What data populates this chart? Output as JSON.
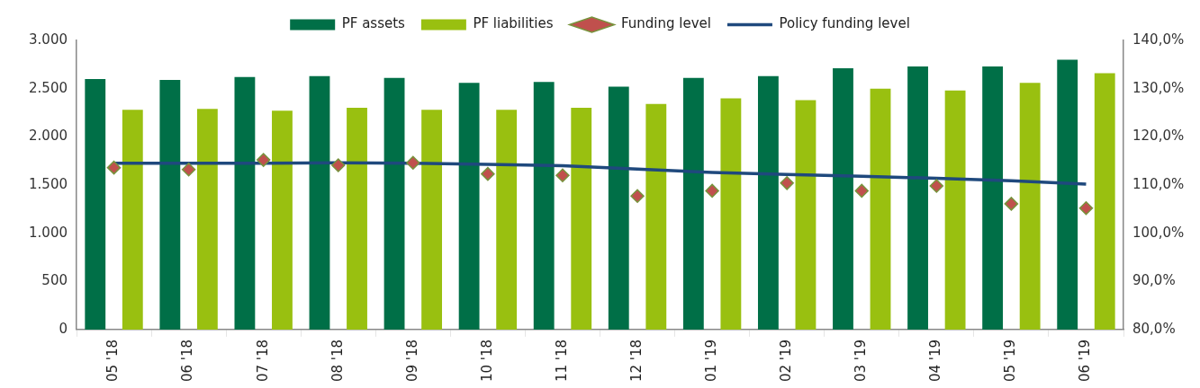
{
  "chart_data": {
    "type": "bar",
    "categories": [
      "05 '18",
      "06 '18",
      "07 '18",
      "08 '18",
      "09 '18",
      "10 '18",
      "11 '18",
      "12 '18",
      "01 '19",
      "02 '19",
      "03 '19",
      "04 '19",
      "05 '19",
      "06 '19"
    ],
    "series": [
      {
        "name": "PF assets",
        "color": "#006f47",
        "values": [
          2600,
          2590,
          2620,
          2630,
          2610,
          2560,
          2570,
          2520,
          2610,
          2630,
          2710,
          2730,
          2730,
          2800
        ]
      },
      {
        "name": "PF liabilities",
        "color": "#99c010",
        "values": [
          2280,
          2290,
          2270,
          2300,
          2280,
          2280,
          2300,
          2340,
          2400,
          2380,
          2500,
          2480,
          2560,
          2660
        ]
      },
      {
        "name": "Funding level",
        "type": "scatter",
        "axis": "y2",
        "marker": "diamond",
        "color": "#c0504d",
        "x": [
          "05 '18",
          "06 '18",
          "07 '18",
          "08 '18",
          "09 '18",
          "10 '18",
          "11 '18",
          "12 '18",
          "01 '19",
          "02 '19",
          "03 '19",
          "04 '19",
          "05 '19",
          "06 '19"
        ],
        "values": [
          113.6,
          113.2,
          115.2,
          114.1,
          114.6,
          112.3,
          112.0,
          107.7,
          108.8,
          110.4,
          108.8,
          109.8,
          106.1,
          105.2
        ]
      },
      {
        "name": "Policy funding level",
        "type": "line",
        "axis": "y2",
        "marker": "none",
        "line_style": "solid",
        "color": "#1f497d",
        "values": [
          114.5,
          114.5,
          114.5,
          114.6,
          114.5,
          114.3,
          114.0,
          113.3,
          112.6,
          112.2,
          111.8,
          111.4,
          110.9,
          110.2
        ]
      }
    ],
    "ylim": [
      0,
      3000
    ],
    "yticks": [
      0,
      500,
      {
        "value": 1000,
        "label": "1.000"
      },
      {
        "value": 1500,
        "label": "1.500"
      },
      {
        "value": 2000,
        "label": "2.000"
      },
      {
        "value": 2500,
        "label": "2.500"
      },
      {
        "value": 3000,
        "label": "3.000"
      }
    ],
    "y2lim": [
      80,
      140
    ],
    "y2ticks": [
      {
        "value": 80,
        "label": "80,0%"
      },
      {
        "value": 90,
        "label": "90,0%"
      },
      {
        "value": 100,
        "label": "100,0%"
      },
      {
        "value": 110,
        "label": "110,0%"
      },
      {
        "value": 120,
        "label": "120,0%"
      },
      {
        "value": 130,
        "label": "130,0%"
      },
      {
        "value": 140,
        "label": "140,0%"
      }
    ],
    "grid": false,
    "legend": "top"
  }
}
